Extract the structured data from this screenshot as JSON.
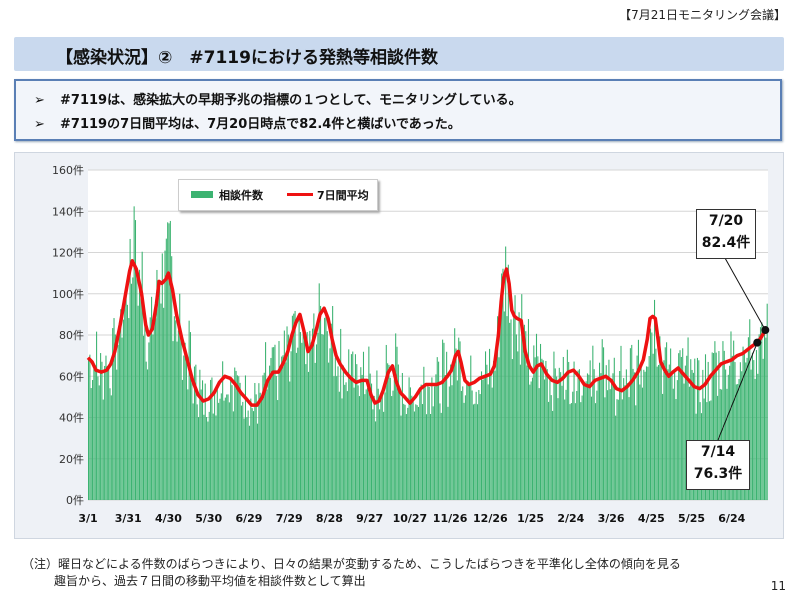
{
  "header": {
    "meeting_tag": "【7月21日モニタリング会議】"
  },
  "title": "【感染状況】②　#7119における発熱等相談件数",
  "bullets": [
    "#7119は、感染拡大の早期予兆の指標の１つとして、モニタリングしている。",
    "#7119の7日間平均は、7月20日時点で82.4件と横ばいであった。"
  ],
  "bullet_marker": "➢",
  "legend": {
    "bars": "相談件数",
    "line": "7日間平均"
  },
  "colors": {
    "bars": "#3cb371",
    "line": "#ee1111",
    "accent": "#c9d9ee"
  },
  "callouts": {
    "latest": {
      "date": "7/20",
      "value": "82.4件"
    },
    "week_ago": {
      "date": "7/14",
      "value": "76.3件"
    }
  },
  "note": {
    "line1": "（注）曜日などによる件数のばらつきにより、日々の結果が変動するため、こうしたばらつきを平準化し全体の傾向を見る",
    "line2": "趣旨から、過去７日間の移動平均値を相談件数として算出"
  },
  "page_number": "11",
  "chart_data": {
    "type": "bar+line",
    "title": "",
    "xlabel": "",
    "ylabel": "",
    "ylim": [
      0,
      160
    ],
    "y_ticks": [
      "0件",
      "20件",
      "40件",
      "60件",
      "80件",
      "100件",
      "120件",
      "140件",
      "160件"
    ],
    "y_tick_values": [
      0,
      20,
      40,
      60,
      80,
      100,
      120,
      140,
      160
    ],
    "x_tick_labels": [
      "3/1",
      "3/31",
      "4/30",
      "5/30",
      "6/29",
      "7/29",
      "8/28",
      "9/27",
      "10/27",
      "11/26",
      "12/26",
      "1/25",
      "2/24",
      "3/26",
      "4/25",
      "5/25",
      "6/24"
    ],
    "x_tick_day_index": [
      0,
      30,
      60,
      90,
      120,
      150,
      180,
      210,
      240,
      270,
      300,
      330,
      360,
      390,
      420,
      450,
      480
    ],
    "n_days": 507,
    "series": [
      {
        "name": "7日間平均",
        "type": "line",
        "points_day_value": [
          [
            0,
            69
          ],
          [
            3,
            67
          ],
          [
            6,
            63
          ],
          [
            10,
            62
          ],
          [
            14,
            63
          ],
          [
            17,
            66
          ],
          [
            20,
            72
          ],
          [
            24,
            85
          ],
          [
            28,
            100
          ],
          [
            31,
            111
          ],
          [
            33,
            116
          ],
          [
            36,
            112
          ],
          [
            40,
            100
          ],
          [
            43,
            85
          ],
          [
            45,
            80
          ],
          [
            48,
            83
          ],
          [
            51,
            95
          ],
          [
            53,
            106
          ],
          [
            55,
            105
          ],
          [
            58,
            107
          ],
          [
            60,
            110
          ],
          [
            63,
            102
          ],
          [
            66,
            90
          ],
          [
            70,
            78
          ],
          [
            74,
            68
          ],
          [
            78,
            58
          ],
          [
            82,
            51
          ],
          [
            86,
            48
          ],
          [
            90,
            49
          ],
          [
            94,
            52
          ],
          [
            98,
            57
          ],
          [
            102,
            60
          ],
          [
            106,
            59
          ],
          [
            110,
            56
          ],
          [
            114,
            52
          ],
          [
            118,
            49
          ],
          [
            122,
            46
          ],
          [
            126,
            46
          ],
          [
            130,
            50
          ],
          [
            134,
            58
          ],
          [
            138,
            62
          ],
          [
            142,
            62
          ],
          [
            146,
            67
          ],
          [
            149,
            72
          ],
          [
            152,
            80
          ],
          [
            155,
            86
          ],
          [
            158,
            90
          ],
          [
            161,
            82
          ],
          [
            164,
            72
          ],
          [
            167,
            75
          ],
          [
            170,
            82
          ],
          [
            173,
            90
          ],
          [
            176,
            93
          ],
          [
            179,
            88
          ],
          [
            182,
            78
          ],
          [
            185,
            70
          ],
          [
            188,
            66
          ],
          [
            192,
            62
          ],
          [
            196,
            59
          ],
          [
            200,
            57
          ],
          [
            204,
            58
          ],
          [
            208,
            58
          ],
          [
            211,
            51
          ],
          [
            214,
            47
          ],
          [
            217,
            48
          ],
          [
            220,
            53
          ],
          [
            224,
            62
          ],
          [
            227,
            65
          ],
          [
            230,
            57
          ],
          [
            233,
            52
          ],
          [
            236,
            50
          ],
          [
            240,
            47
          ],
          [
            244,
            50
          ],
          [
            248,
            54
          ],
          [
            252,
            56
          ],
          [
            256,
            56
          ],
          [
            260,
            56
          ],
          [
            264,
            57
          ],
          [
            268,
            60
          ],
          [
            271,
            63
          ],
          [
            274,
            70
          ],
          [
            276,
            72
          ],
          [
            278,
            67
          ],
          [
            281,
            58
          ],
          [
            284,
            56
          ],
          [
            288,
            57
          ],
          [
            292,
            59
          ],
          [
            296,
            60
          ],
          [
            300,
            61
          ],
          [
            303,
            65
          ],
          [
            306,
            80
          ],
          [
            308,
            96
          ],
          [
            310,
            108
          ],
          [
            312,
            112
          ],
          [
            314,
            105
          ],
          [
            316,
            92
          ],
          [
            318,
            89
          ],
          [
            320,
            88
          ],
          [
            323,
            87
          ],
          [
            326,
            72
          ],
          [
            329,
            65
          ],
          [
            332,
            62
          ],
          [
            335,
            65
          ],
          [
            338,
            66
          ],
          [
            342,
            61
          ],
          [
            346,
            58
          ],
          [
            350,
            57
          ],
          [
            354,
            59
          ],
          [
            358,
            62
          ],
          [
            362,
            63
          ],
          [
            366,
            60
          ],
          [
            370,
            56
          ],
          [
            374,
            55
          ],
          [
            378,
            58
          ],
          [
            382,
            59
          ],
          [
            386,
            60
          ],
          [
            390,
            58
          ],
          [
            394,
            54
          ],
          [
            398,
            53
          ],
          [
            402,
            55
          ],
          [
            406,
            58
          ],
          [
            410,
            62
          ],
          [
            414,
            68
          ],
          [
            417,
            78
          ],
          [
            419,
            88
          ],
          [
            421,
            89
          ],
          [
            423,
            88
          ],
          [
            425,
            78
          ],
          [
            427,
            67
          ],
          [
            430,
            63
          ],
          [
            433,
            60
          ],
          [
            436,
            62
          ],
          [
            440,
            64
          ],
          [
            444,
            61
          ],
          [
            448,
            58
          ],
          [
            452,
            55
          ],
          [
            456,
            54
          ],
          [
            460,
            56
          ],
          [
            464,
            60
          ],
          [
            468,
            63
          ],
          [
            472,
            66
          ],
          [
            476,
            67
          ],
          [
            480,
            68
          ],
          [
            484,
            70
          ],
          [
            488,
            71
          ],
          [
            492,
            73
          ],
          [
            496,
            75
          ],
          [
            499,
            76.3
          ],
          [
            502,
            79
          ],
          [
            505,
            82.4
          ]
        ]
      },
      {
        "name": "相談件数",
        "type": "bar",
        "note": "daily counts fluctuate around the 7-day average; generated deterministically from the average",
        "variation_amplitude": 18
      }
    ],
    "annotations": [
      {
        "label": "7/20",
        "value": 82.4,
        "day_index": 505
      },
      {
        "label": "7/14",
        "value": 76.3,
        "day_index": 499
      }
    ]
  }
}
